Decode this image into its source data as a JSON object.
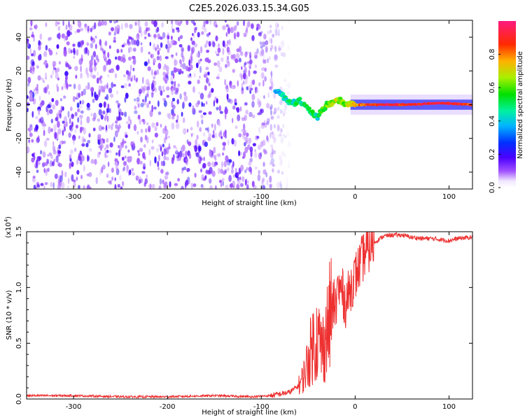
{
  "title": "C2E5.2026.033.15.34.G05",
  "colorbar": {
    "label": "Normalized spectral amplitude",
    "ticks": [
      "0.0",
      "0.2",
      "0.4",
      "0.6",
      "0.8"
    ],
    "tick_values": [
      0.0,
      0.2,
      0.4,
      0.6,
      0.8
    ],
    "range": [
      0,
      1
    ]
  },
  "chart_data": [
    {
      "type": "heatmap",
      "id": "spectrogram",
      "xlabel": "Height of straight line (km)",
      "ylabel": "Frequency (Hz)",
      "xlim": [
        -350,
        125
      ],
      "ylim": [
        -50,
        50
      ],
      "x_ticks": [
        "-300",
        "-200",
        "-100",
        "0",
        "100"
      ],
      "x_tick_values": [
        -300,
        -200,
        -100,
        0,
        100
      ],
      "y_ticks": [
        "-40",
        "-20",
        "0",
        "20",
        "40"
      ],
      "y_tick_values": [
        -40,
        -20,
        0,
        20,
        40
      ],
      "colormap": [
        "#ffffff",
        "#c9a8f0",
        "#7a2bff",
        "#2a2aff",
        "#00c8ff",
        "#00e36a",
        "#c8f000",
        "#ff9900",
        "#ff2020",
        "#ff1a80"
      ],
      "noise_region_x": [
        -350,
        -80
      ],
      "tone_track": {
        "x": [
          -85,
          -80,
          -75,
          -70,
          -65,
          -60,
          -55,
          -50,
          -45,
          -40,
          -35,
          -30,
          -25,
          -20,
          -15,
          -10,
          -5,
          0,
          10,
          30,
          60,
          90,
          125
        ],
        "y": [
          9,
          7,
          4,
          2,
          1,
          3,
          0,
          -3,
          -5,
          -8,
          -3,
          0,
          1,
          3,
          2,
          0,
          1,
          0,
          0,
          0,
          0,
          1,
          0
        ],
        "amplitude": [
          0.35,
          0.4,
          0.45,
          0.5,
          0.45,
          0.5,
          0.45,
          0.55,
          0.5,
          0.45,
          0.55,
          0.6,
          0.62,
          0.7,
          0.6,
          0.65,
          0.7,
          0.75,
          0.85,
          0.9,
          0.88,
          0.95,
          0.85
        ]
      }
    },
    {
      "type": "line",
      "id": "snr",
      "xlabel": "Height of straight line (km)",
      "ylabel": "SNR (10 * v/v)",
      "yunit": "(x10",
      "yunit_exp": "4",
      "yunit_close": ")",
      "xlim": [
        -350,
        125
      ],
      "ylim": [
        0,
        1.5
      ],
      "x_ticks": [
        "-300",
        "-200",
        "-100",
        "0",
        "100"
      ],
      "x_tick_values": [
        -300,
        -200,
        -100,
        0,
        100
      ],
      "y_ticks": [
        "0.0",
        "0.5",
        "1.0",
        "1.5"
      ],
      "y_tick_values": [
        0.0,
        0.5,
        1.0,
        1.5
      ],
      "color": "#ee3030",
      "series": [
        {
          "x": [
            -350,
            -300,
            -250,
            -200,
            -150,
            -110,
            -90,
            -70,
            -60,
            -55,
            -50,
            -45,
            -40,
            -35,
            -30,
            -25,
            -20,
            -15,
            -10,
            -5,
            0,
            10,
            20,
            30,
            40,
            50,
            60,
            70,
            80,
            90,
            100,
            110,
            125
          ],
          "y": [
            0.03,
            0.03,
            0.02,
            0.02,
            0.03,
            0.02,
            0.03,
            0.06,
            0.12,
            0.2,
            0.35,
            0.5,
            0.55,
            0.45,
            0.6,
            0.8,
            0.9,
            1.0,
            0.85,
            1.0,
            1.1,
            1.3,
            1.4,
            1.46,
            1.47,
            1.47,
            1.45,
            1.44,
            1.44,
            1.43,
            1.42,
            1.44,
            1.45
          ]
        }
      ]
    }
  ]
}
